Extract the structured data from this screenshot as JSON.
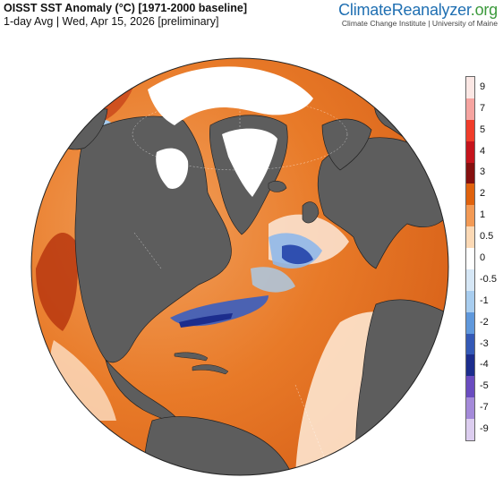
{
  "header": {
    "title": "OISST SST Anomaly (°C) [1971-2000 baseline]",
    "subtitle": "1-day Avg | Wed, Apr 15, 2026 [preliminary]"
  },
  "brand": {
    "name_part1": "Climate",
    "name_part2": "Reanalyzer",
    "name_part3": ".org",
    "sub": "Climate Change Institute | University of Maine"
  },
  "legend": {
    "labels": [
      "9",
      "7",
      "5",
      "4",
      "3",
      "2",
      "1",
      "0.5",
      "0",
      "-0.5",
      "-1",
      "-2",
      "-3",
      "-4",
      "-5",
      "-7",
      "-9"
    ],
    "colors": [
      "#fbe7e4",
      "#f6a4a0",
      "#f03d2a",
      "#c5141c",
      "#85100f",
      "#e0620d",
      "#f39a55",
      "#fcd9b5",
      "#ffffff",
      "#d6e7f6",
      "#a8cdef",
      "#5f98dc",
      "#3459b6",
      "#1c2d8d",
      "#6a4cc0",
      "#a48ad9",
      "#dccdef"
    ]
  },
  "colors": {
    "land": "#5d5d5d",
    "ice": "#ffffff",
    "warm": "#e8771f",
    "cool": "#3d6fcf"
  }
}
